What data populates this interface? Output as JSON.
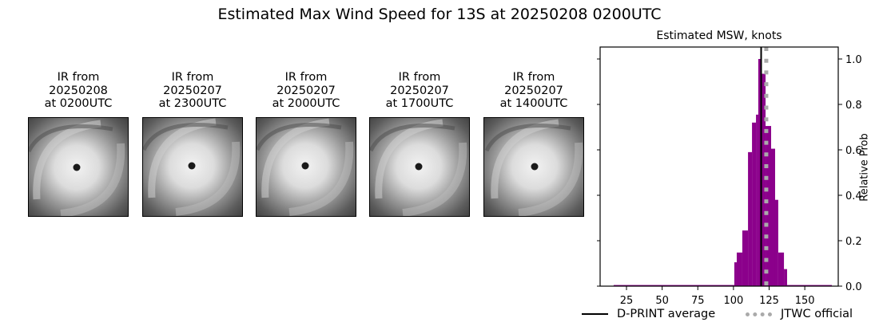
{
  "figure": {
    "suptitle": "Estimated Max Wind Speed for 13S at 20250208 0200UTC"
  },
  "ir_panels": [
    {
      "label": "IR from\n20250208\nat 0200UTC"
    },
    {
      "label": "IR from\n20250207\nat 2300UTC"
    },
    {
      "label": "IR from\n20250207\nat 2000UTC"
    },
    {
      "label": "IR from\n20250207\nat 1700UTC"
    },
    {
      "label": "IR from\n20250207\nat 1400UTC"
    }
  ],
  "chart_data": {
    "type": "bar",
    "title": "Estimated MSW, knots",
    "xlabel": "",
    "ylabel": "Relative Prob",
    "xlim": [
      5,
      172
    ],
    "ylim": [
      0,
      1.05
    ],
    "xticks": [
      25,
      50,
      75,
      100,
      125,
      150
    ],
    "yticks": [
      0.0,
      0.2,
      0.4,
      0.6,
      0.8,
      1.0
    ],
    "ytick_labels": [
      "0.0",
      "0.2",
      "0.4",
      "0.6",
      "0.8",
      "1.0"
    ],
    "y_axis_side": "right",
    "grid": false,
    "bar_color": "#8b008b",
    "bins": [
      {
        "x0": 16,
        "x1": 100.6,
        "value": 0.005
      },
      {
        "x0": 100.6,
        "x1": 102.3,
        "value": 0.105
      },
      {
        "x0": 102.3,
        "x1": 106.2,
        "value": 0.148
      },
      {
        "x0": 106.2,
        "x1": 110.2,
        "value": 0.245
      },
      {
        "x0": 110.2,
        "x1": 113.0,
        "value": 0.59
      },
      {
        "x0": 113.0,
        "x1": 115.8,
        "value": 0.72
      },
      {
        "x0": 115.8,
        "x1": 117.4,
        "value": 0.755
      },
      {
        "x0": 117.4,
        "x1": 119.7,
        "value": 1.0
      },
      {
        "x0": 119.7,
        "x1": 122.5,
        "value": 0.935
      },
      {
        "x0": 122.5,
        "x1": 126.4,
        "value": 0.705
      },
      {
        "x0": 126.4,
        "x1": 129.2,
        "value": 0.605
      },
      {
        "x0": 129.2,
        "x1": 131.4,
        "value": 0.38
      },
      {
        "x0": 131.4,
        "x1": 135.4,
        "value": 0.148
      },
      {
        "x0": 135.4,
        "x1": 137.6,
        "value": 0.075
      },
      {
        "x0": 137.6,
        "x1": 169,
        "value": 0.005
      }
    ],
    "vlines": [
      {
        "name": "D-PRINT average",
        "x": 119.4,
        "color": "#000000",
        "style": "solid"
      },
      {
        "name": "JTWC official",
        "x": 123,
        "color": "#aaaaaa",
        "style": "dotted"
      }
    ],
    "legend": {
      "position": "below",
      "entries": [
        "D-PRINT average",
        "JTWC official"
      ]
    }
  }
}
